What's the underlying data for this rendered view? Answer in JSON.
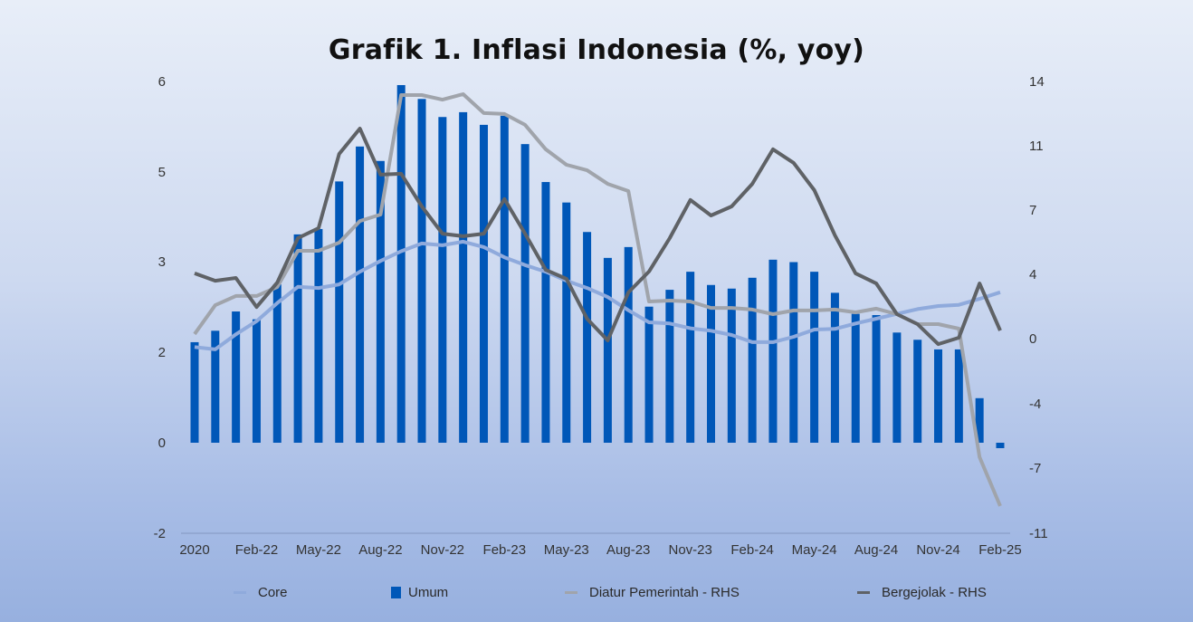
{
  "title": "Grafik 1. Inflasi Indonesia (%, yoy)",
  "colors": {
    "umum": "#0057b8",
    "core": "#8faadc",
    "diatur": "#a0a4ab",
    "bergejolak": "#5f6266",
    "axis_line": "#8ea3cc"
  },
  "legend": [
    {
      "label": "Core",
      "type": "line",
      "color": "#8faadc"
    },
    {
      "label": "Umum",
      "type": "box",
      "color": "#0057b8"
    },
    {
      "label": "Diatur Pemerintah - RHS",
      "type": "line",
      "color": "#a0a4ab"
    },
    {
      "label": "Bergejolak - RHS",
      "type": "line",
      "color": "#5f6266"
    }
  ],
  "chart_data": {
    "type": "bar+line",
    "title": "Grafik 1. Inflasi Indonesia (%, yoy)",
    "xlabel": "",
    "ylabel": "%, yoy",
    "left_axis": {
      "tick_labels": [
        "6",
        "5",
        "3",
        "2",
        "0",
        "-2"
      ],
      "ylim": [
        -1.5,
        6.0
      ]
    },
    "right_axis": {
      "tick_labels": [
        "14",
        "11",
        "7",
        "4",
        "0",
        "-4",
        "-7",
        "-11"
      ],
      "ylim": [
        -10.7,
        14.0
      ]
    },
    "x_tick_labels": [
      "2020",
      "Feb-22",
      "May-22",
      "Aug-22",
      "Nov-22",
      "Feb-23",
      "May-23",
      "Aug-23",
      "Nov-23",
      "Feb-24",
      "May-24",
      "Aug-24",
      "Nov-24",
      "Feb-25"
    ],
    "x_tick_indices": [
      0,
      3,
      6,
      9,
      12,
      15,
      18,
      21,
      24,
      27,
      30,
      33,
      36,
      39
    ],
    "grid": false,
    "legend_position": "bottom",
    "series": [
      {
        "name": "Umum",
        "type": "bar",
        "axis": "left",
        "values": [
          1.67,
          1.86,
          2.18,
          2.05,
          2.63,
          3.46,
          3.55,
          4.34,
          4.92,
          4.68,
          5.94,
          5.71,
          5.41,
          5.49,
          5.28,
          5.43,
          4.96,
          4.33,
          3.99,
          3.5,
          3.07,
          3.25,
          2.26,
          2.54,
          2.84,
          2.62,
          2.56,
          2.74,
          3.04,
          3.0,
          2.84,
          2.49,
          2.14,
          2.12,
          1.83,
          1.71,
          1.55,
          1.55,
          0.74,
          -0.09
        ]
      },
      {
        "name": "Core",
        "type": "line",
        "axis": "left",
        "values": [
          1.59,
          1.55,
          1.8,
          2.02,
          2.32,
          2.59,
          2.57,
          2.63,
          2.84,
          3.02,
          3.18,
          3.31,
          3.28,
          3.34,
          3.25,
          3.08,
          2.95,
          2.84,
          2.69,
          2.57,
          2.42,
          2.2,
          2.0,
          1.98,
          1.9,
          1.86,
          1.79,
          1.67,
          1.67,
          1.76,
          1.88,
          1.89,
          1.98,
          2.06,
          2.14,
          2.22,
          2.27,
          2.29,
          2.39,
          2.5
        ]
      },
      {
        "name": "Diatur Pemerintah - RHS",
        "type": "line",
        "axis": "right",
        "values": [
          0.25,
          1.82,
          2.32,
          2.32,
          2.81,
          4.78,
          4.78,
          5.22,
          6.4,
          6.75,
          13.25,
          13.25,
          13.0,
          13.3,
          12.27,
          12.22,
          11.63,
          10.3,
          9.46,
          9.16,
          8.42,
          8.03,
          2.02,
          2.07,
          2.02,
          1.67,
          1.67,
          1.58,
          1.33,
          1.53,
          1.53,
          1.58,
          1.43,
          1.63,
          1.33,
          0.79,
          0.79,
          0.54,
          -6.45,
          -9.11
        ]
      },
      {
        "name": "Bergejolak - RHS",
        "type": "line",
        "axis": "right",
        "values": [
          3.55,
          3.15,
          3.3,
          1.72,
          3.05,
          5.47,
          6.01,
          10.05,
          11.43,
          8.92,
          8.97,
          7.19,
          5.71,
          5.57,
          5.71,
          7.59,
          5.71,
          3.74,
          3.25,
          1.08,
          -0.1,
          2.51,
          3.65,
          5.47,
          7.54,
          6.7,
          7.19,
          8.42,
          10.3,
          9.56,
          8.08,
          5.62,
          3.55,
          3.0,
          1.33,
          0.79,
          -0.3,
          0.05,
          3.0,
          0.44
        ]
      }
    ]
  }
}
